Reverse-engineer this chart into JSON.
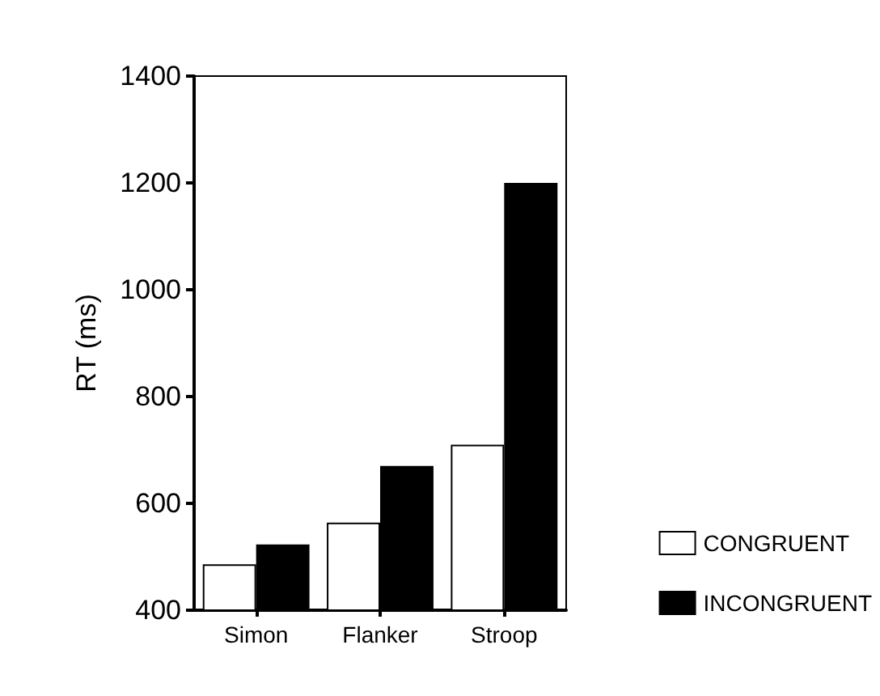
{
  "chart_data": {
    "type": "bar",
    "ylabel": "RT (ms)",
    "categories": [
      "Simon",
      "Flanker",
      "Stroop"
    ],
    "series": [
      {
        "name": "CONGRUENT",
        "color": "#ffffff",
        "values": [
          486,
          564,
          710
        ]
      },
      {
        "name": "INCONGRUENT",
        "color": "#000000",
        "values": [
          523,
          670,
          1200
        ]
      }
    ],
    "ylim": [
      400,
      1400
    ],
    "yticks": [
      400,
      600,
      800,
      1000,
      1200,
      1400
    ],
    "grid": false,
    "legend": "bottom right"
  }
}
